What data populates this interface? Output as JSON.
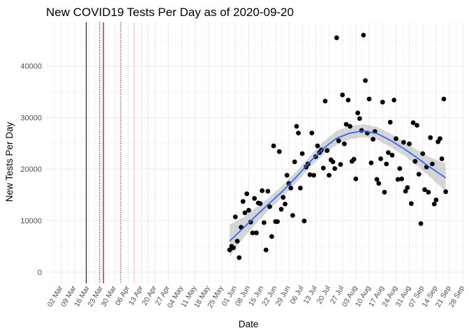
{
  "chart_data": {
    "type": "scatter",
    "title": "New COVID19 Tests Per Day as of 2020-09-20",
    "xlabel": "Date",
    "ylabel": "New Tests Per Day",
    "ylim": [
      -2200,
      48500
    ],
    "xlim": [
      "2020-02-23",
      "2020-09-29"
    ],
    "y_ticks": [
      0,
      10000,
      20000,
      30000,
      40000
    ],
    "x_ticks": [
      "2020-03-02",
      "2020-03-09",
      "2020-03-16",
      "2020-03-23",
      "2020-03-30",
      "2020-04-06",
      "2020-04-13",
      "2020-04-20",
      "2020-04-27",
      "2020-05-04",
      "2020-05-11",
      "2020-05-18",
      "2020-05-25",
      "2020-06-01",
      "2020-06-08",
      "2020-06-15",
      "2020-06-22",
      "2020-06-29",
      "2020-07-06",
      "2020-07-13",
      "2020-07-20",
      "2020-07-27",
      "2020-08-03",
      "2020-08-10",
      "2020-08-17",
      "2020-08-24",
      "2020-08-31",
      "2020-09-07",
      "2020-09-14",
      "2020-09-21",
      "2020-09-28"
    ],
    "x_tick_labels": [
      "02 Mar",
      "09 Mar",
      "16 Mar",
      "23 Mar",
      "30 Mar",
      "06 Apr",
      "13 Apr",
      "20 Apr",
      "27 Apr",
      "04 May",
      "11 May",
      "18 May",
      "25 May",
      "01 Jun",
      "08 Jun",
      "15 Jun",
      "22 Jun",
      "29 Jun",
      "06 Jul",
      "13 Jul",
      "20 Jul",
      "27 Jul",
      "03 Aug",
      "10 Aug",
      "17 Aug",
      "24 Aug",
      "31 Aug",
      "07 Sep",
      "14 Sep",
      "21 Sep",
      "28 Sep"
    ],
    "grid": true,
    "point_color": "#000000",
    "smooth_color": "#3366ff",
    "band_color": "#999999",
    "vlines": [
      {
        "date": "2020-03-15",
        "color": "#00008b",
        "style": "solid"
      },
      {
        "date": "2020-03-22",
        "color": "#00008b",
        "style": "dotted"
      },
      {
        "date": "2020-03-24",
        "color": "#8b0000",
        "style": "solid"
      },
      {
        "date": "2020-04-02",
        "color": "#8b0000",
        "style": "dotted"
      },
      {
        "date": "2020-04-09",
        "color": "#ffc0cb",
        "style": "solid"
      },
      {
        "date": "2020-04-16",
        "color": "#ffc0cb",
        "style": "dotted"
      }
    ],
    "points": [
      [
        "2020-05-29",
        4300
      ],
      [
        "2020-05-30",
        5000
      ],
      [
        "2020-05-31",
        4700
      ],
      [
        "2020-06-01",
        10700
      ],
      [
        "2020-06-02",
        6000
      ],
      [
        "2020-06-03",
        2800
      ],
      [
        "2020-06-04",
        8700
      ],
      [
        "2020-06-05",
        13700
      ],
      [
        "2020-06-06",
        11500
      ],
      [
        "2020-06-07",
        15200
      ],
      [
        "2020-06-08",
        12000
      ],
      [
        "2020-06-09",
        9700
      ],
      [
        "2020-06-10",
        7600
      ],
      [
        "2020-06-11",
        14300
      ],
      [
        "2020-06-12",
        7600
      ],
      [
        "2020-06-13",
        13400
      ],
      [
        "2020-06-14",
        13300
      ],
      [
        "2020-06-15",
        15800
      ],
      [
        "2020-06-16",
        9600
      ],
      [
        "2020-06-17",
        4300
      ],
      [
        "2020-06-18",
        15700
      ],
      [
        "2020-06-19",
        12700
      ],
      [
        "2020-06-20",
        6900
      ],
      [
        "2020-06-21",
        24500
      ],
      [
        "2020-06-22",
        9800
      ],
      [
        "2020-06-23",
        9800
      ],
      [
        "2020-06-24",
        23400
      ],
      [
        "2020-06-25",
        12200
      ],
      [
        "2020-06-26",
        14500
      ],
      [
        "2020-06-27",
        13200
      ],
      [
        "2020-06-28",
        18800
      ],
      [
        "2020-06-29",
        17200
      ],
      [
        "2020-06-30",
        16300
      ],
      [
        "2020-07-01",
        11000
      ],
      [
        "2020-07-02",
        21400
      ],
      [
        "2020-07-03",
        28300
      ],
      [
        "2020-07-04",
        27000
      ],
      [
        "2020-07-05",
        16300
      ],
      [
        "2020-07-06",
        23000
      ],
      [
        "2020-07-07",
        9900
      ],
      [
        "2020-07-08",
        20400
      ],
      [
        "2020-07-09",
        21000
      ],
      [
        "2020-07-10",
        18900
      ],
      [
        "2020-07-11",
        27000
      ],
      [
        "2020-07-12",
        18800
      ],
      [
        "2020-07-13",
        22400
      ],
      [
        "2020-07-14",
        24500
      ],
      [
        "2020-07-15",
        23200
      ],
      [
        "2020-07-16",
        23700
      ],
      [
        "2020-07-17",
        20200
      ],
      [
        "2020-07-18",
        33200
      ],
      [
        "2020-07-19",
        23600
      ],
      [
        "2020-07-20",
        18800
      ],
      [
        "2020-07-21",
        21800
      ],
      [
        "2020-07-22",
        21400
      ],
      [
        "2020-07-23",
        20100
      ],
      [
        "2020-07-24",
        45500
      ],
      [
        "2020-07-25",
        25500
      ],
      [
        "2020-07-26",
        20900
      ],
      [
        "2020-07-27",
        34400
      ],
      [
        "2020-07-28",
        24900
      ],
      [
        "2020-07-29",
        28700
      ],
      [
        "2020-07-30",
        33400
      ],
      [
        "2020-07-31",
        28300
      ],
      [
        "2020-08-01",
        21500
      ],
      [
        "2020-08-02",
        21900
      ],
      [
        "2020-08-03",
        18100
      ],
      [
        "2020-08-04",
        30900
      ],
      [
        "2020-08-05",
        29800
      ],
      [
        "2020-08-06",
        27500
      ],
      [
        "2020-08-07",
        46000
      ],
      [
        "2020-08-08",
        37200
      ],
      [
        "2020-08-09",
        27000
      ],
      [
        "2020-08-10",
        33600
      ],
      [
        "2020-08-11",
        21200
      ],
      [
        "2020-08-12",
        25800
      ],
      [
        "2020-08-13",
        27300
      ],
      [
        "2020-08-14",
        18000
      ],
      [
        "2020-08-15",
        17200
      ],
      [
        "2020-08-16",
        22000
      ],
      [
        "2020-08-17",
        33000
      ],
      [
        "2020-08-18",
        15500
      ],
      [
        "2020-08-19",
        21000
      ],
      [
        "2020-08-20",
        23200
      ],
      [
        "2020-08-21",
        29100
      ],
      [
        "2020-08-22",
        22700
      ],
      [
        "2020-08-23",
        33400
      ],
      [
        "2020-08-24",
        25900
      ],
      [
        "2020-08-25",
        18000
      ],
      [
        "2020-08-26",
        20100
      ],
      [
        "2020-08-27",
        18100
      ],
      [
        "2020-08-28",
        25200
      ],
      [
        "2020-08-29",
        15700
      ],
      [
        "2020-08-30",
        16400
      ],
      [
        "2020-08-31",
        24900
      ],
      [
        "2020-09-01",
        13300
      ],
      [
        "2020-09-02",
        29000
      ],
      [
        "2020-09-03",
        21500
      ],
      [
        "2020-09-04",
        28500
      ],
      [
        "2020-09-05",
        19000
      ],
      [
        "2020-09-06",
        9400
      ],
      [
        "2020-09-07",
        23000
      ],
      [
        "2020-09-08",
        16000
      ],
      [
        "2020-09-09",
        20400
      ],
      [
        "2020-09-10",
        15500
      ],
      [
        "2020-09-11",
        26100
      ],
      [
        "2020-09-12",
        21000
      ],
      [
        "2020-09-13",
        13200
      ],
      [
        "2020-09-14",
        14000
      ],
      [
        "2020-09-15",
        25300
      ],
      [
        "2020-09-16",
        25900
      ],
      [
        "2020-09-17",
        22000
      ],
      [
        "2020-09-18",
        33600
      ],
      [
        "2020-09-19",
        15600
      ]
    ],
    "smooth": [
      [
        "2020-05-29",
        6000,
        3000,
        9200
      ],
      [
        "2020-06-05",
        8500,
        6500,
        10600
      ],
      [
        "2020-06-12",
        11000,
        9500,
        12600
      ],
      [
        "2020-06-19",
        13400,
        12200,
        14600
      ],
      [
        "2020-06-26",
        15800,
        14700,
        16900
      ],
      [
        "2020-07-03",
        18500,
        17400,
        19600
      ],
      [
        "2020-07-10",
        21400,
        20300,
        22500
      ],
      [
        "2020-07-17",
        24000,
        22800,
        25300
      ],
      [
        "2020-07-24",
        26000,
        24700,
        27400
      ],
      [
        "2020-07-31",
        27000,
        25800,
        28400
      ],
      [
        "2020-08-07",
        27400,
        26200,
        28700
      ],
      [
        "2020-08-14",
        26900,
        25700,
        28200
      ],
      [
        "2020-08-21",
        25600,
        24300,
        26900
      ],
      [
        "2020-08-28",
        24000,
        22700,
        25400
      ],
      [
        "2020-09-04",
        22200,
        20700,
        23700
      ],
      [
        "2020-09-11",
        20300,
        18400,
        22200
      ],
      [
        "2020-09-19",
        18300,
        15600,
        21100
      ]
    ]
  }
}
